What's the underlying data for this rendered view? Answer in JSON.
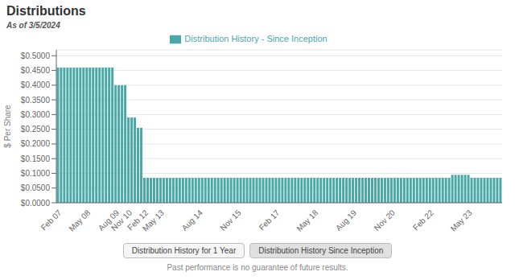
{
  "chart_data": {
    "type": "bar",
    "title": "Distributions",
    "subtitle": "As of 3/5/2024",
    "ylabel": "$ Per Share",
    "annotations": [
      "Distribution History for 1 Year",
      "Distribution History Since Inception",
      "Past performance is no guarantee of future results."
    ],
    "categories": [
      "Feb 07",
      null,
      null,
      null,
      null,
      null,
      null,
      null,
      null,
      "May 08",
      null,
      null,
      null,
      null,
      null,
      null,
      null,
      null,
      "Aug 09",
      null,
      null,
      null,
      "Nov 10",
      null,
      null,
      null,
      null,
      "Feb 12",
      null,
      null,
      null,
      null,
      "May 13",
      null,
      null,
      null,
      null,
      null,
      null,
      null,
      null,
      null,
      null,
      null,
      "Aug 14",
      null,
      null,
      null,
      null,
      null,
      null,
      null,
      null,
      null,
      null,
      null,
      "Nov 15",
      null,
      null,
      null,
      null,
      null,
      null,
      null,
      null,
      null,
      null,
      null,
      "Feb 17",
      null,
      null,
      null,
      null,
      null,
      null,
      null,
      null,
      null,
      null,
      null,
      "May 18",
      null,
      null,
      null,
      null,
      null,
      null,
      null,
      null,
      null,
      null,
      null,
      "Aug 19",
      null,
      null,
      null,
      null,
      null,
      null,
      null,
      null,
      null,
      null,
      null,
      "Nov 20",
      null,
      null,
      null,
      null,
      null,
      null,
      null,
      null,
      null,
      null,
      null,
      "Feb 22",
      null,
      null,
      null,
      null,
      null,
      null,
      null,
      null,
      null,
      null,
      null,
      "May 23",
      null,
      null,
      null,
      null,
      null,
      null,
      null,
      null,
      null,
      null
    ],
    "series": [
      {
        "name": "Distribution History - Since Inception",
        "color": "#4aa8a8",
        "values": [
          0.46,
          0.46,
          0.46,
          0.46,
          0.46,
          0.46,
          0.46,
          0.46,
          0.46,
          0.46,
          0.46,
          0.46,
          0.46,
          0.46,
          0.46,
          0.46,
          0.46,
          0.46,
          0.4,
          0.4,
          0.4,
          0.4,
          0.29,
          0.29,
          0.29,
          0.255,
          0.255,
          0.085,
          0.085,
          0.085,
          0.085,
          0.085,
          0.085,
          0.085,
          0.085,
          0.085,
          0.085,
          0.085,
          0.085,
          0.085,
          0.085,
          0.085,
          0.085,
          0.085,
          0.085,
          0.085,
          0.085,
          0.085,
          0.085,
          0.085,
          0.085,
          0.085,
          0.085,
          0.085,
          0.085,
          0.085,
          0.085,
          0.085,
          0.085,
          0.085,
          0.085,
          0.085,
          0.085,
          0.085,
          0.085,
          0.085,
          0.085,
          0.085,
          0.085,
          0.085,
          0.085,
          0.085,
          0.085,
          0.085,
          0.085,
          0.085,
          0.085,
          0.085,
          0.085,
          0.085,
          0.085,
          0.085,
          0.085,
          0.085,
          0.085,
          0.085,
          0.085,
          0.085,
          0.085,
          0.085,
          0.085,
          0.085,
          0.085,
          0.085,
          0.085,
          0.085,
          0.085,
          0.085,
          0.085,
          0.085,
          0.085,
          0.085,
          0.085,
          0.085,
          0.085,
          0.085,
          0.085,
          0.085,
          0.085,
          0.085,
          0.085,
          0.085,
          0.085,
          0.085,
          0.085,
          0.085,
          0.085,
          0.085,
          0.085,
          0.085,
          0.085,
          0.085,
          0.085,
          0.095,
          0.095,
          0.095,
          0.095,
          0.095,
          0.095,
          0.085,
          0.085,
          0.085,
          0.085,
          0.085,
          0.085,
          0.085,
          0.085,
          0.085,
          0.085
        ]
      }
    ],
    "ylim": [
      0,
      0.52
    ],
    "yticks": [
      {
        "value": 0,
        "label": "$0.0000"
      },
      {
        "value": 0.05,
        "label": "$0.0500"
      },
      {
        "value": 0.1,
        "label": "$0.1000"
      },
      {
        "value": 0.15,
        "label": "$0.1500"
      },
      {
        "value": 0.2,
        "label": "$0.2000"
      },
      {
        "value": 0.25,
        "label": "$0.2500"
      },
      {
        "value": 0.3,
        "label": "$0.3000"
      },
      {
        "value": 0.35,
        "label": "$0.3500"
      },
      {
        "value": 0.4,
        "label": "$0.4000"
      },
      {
        "value": 0.45,
        "label": "$0.4500"
      },
      {
        "value": 0.5,
        "label": "$0.5000"
      }
    ],
    "grid": true,
    "legend": "top"
  }
}
